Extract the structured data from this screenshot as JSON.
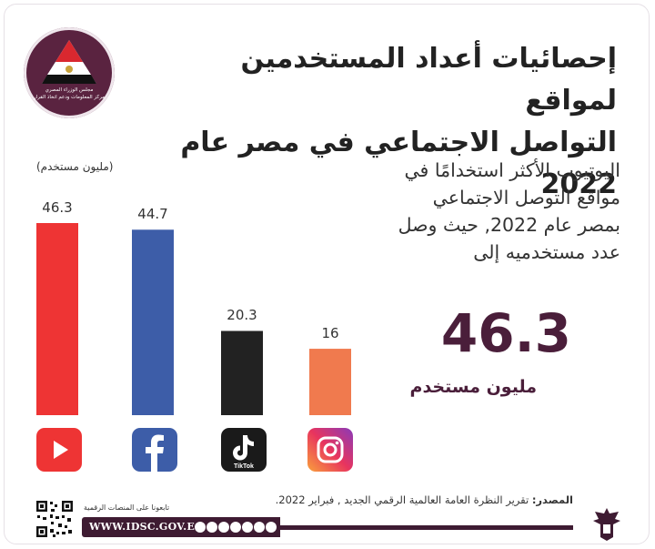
{
  "header": {
    "title_line1": "إحصائيات أعداد المستخدمين لمواقع",
    "title_line2": "التواصل الاجتماعي في مصر عام 2022",
    "logo_text_line1": "مجلس الوزراء المصري",
    "logo_text_line2": "مركز المعلومات ودعم اتخاذ القرار"
  },
  "chart_data": {
    "type": "bar",
    "categories": [
      "YouTube",
      "Facebook",
      "TikTok",
      "Instagram"
    ],
    "values": [
      46.3,
      44.7,
      20.3,
      16
    ],
    "value_labels": [
      "46.3",
      "44.7",
      "20.3",
      "16"
    ],
    "unit_label": "(مليون مستخدم)",
    "title": "",
    "xlabel": "",
    "ylabel": "",
    "ylim": [
      0,
      46.3
    ],
    "colors": [
      "#ee3434",
      "#3d5da8",
      "#222222",
      "#f07a4e"
    ],
    "grid": false,
    "legend": "none"
  },
  "icons": {
    "youtube_icon": "youtube-icon",
    "facebook_icon": "facebook-icon",
    "tiktok_icon": "tiktok-icon",
    "tiktok_label": "TikTok",
    "instagram_icon": "instagram-icon"
  },
  "callout": {
    "line1": "اليوتيوب الأكثر استخدامًا في",
    "line2": "مواقع التوصل الاجتماعي",
    "line3": "بمصر عام 2022, حيث وصل",
    "line4": "عدد مستخدميه إلى",
    "big_value": "46.3",
    "big_unit": "مليون مستخدم",
    "accent_color": "#4a1e3a"
  },
  "footer": {
    "source_label": "المصدر:",
    "source_text": "تقرير النظرة العامة العالمية الرقمي الجديد , فبراير 2022.",
    "qr_caption": "تابعونا على المنصات الرقمية",
    "url": "WWW.IDSC.GOV.EG",
    "brand_color": "#3e1b32"
  }
}
